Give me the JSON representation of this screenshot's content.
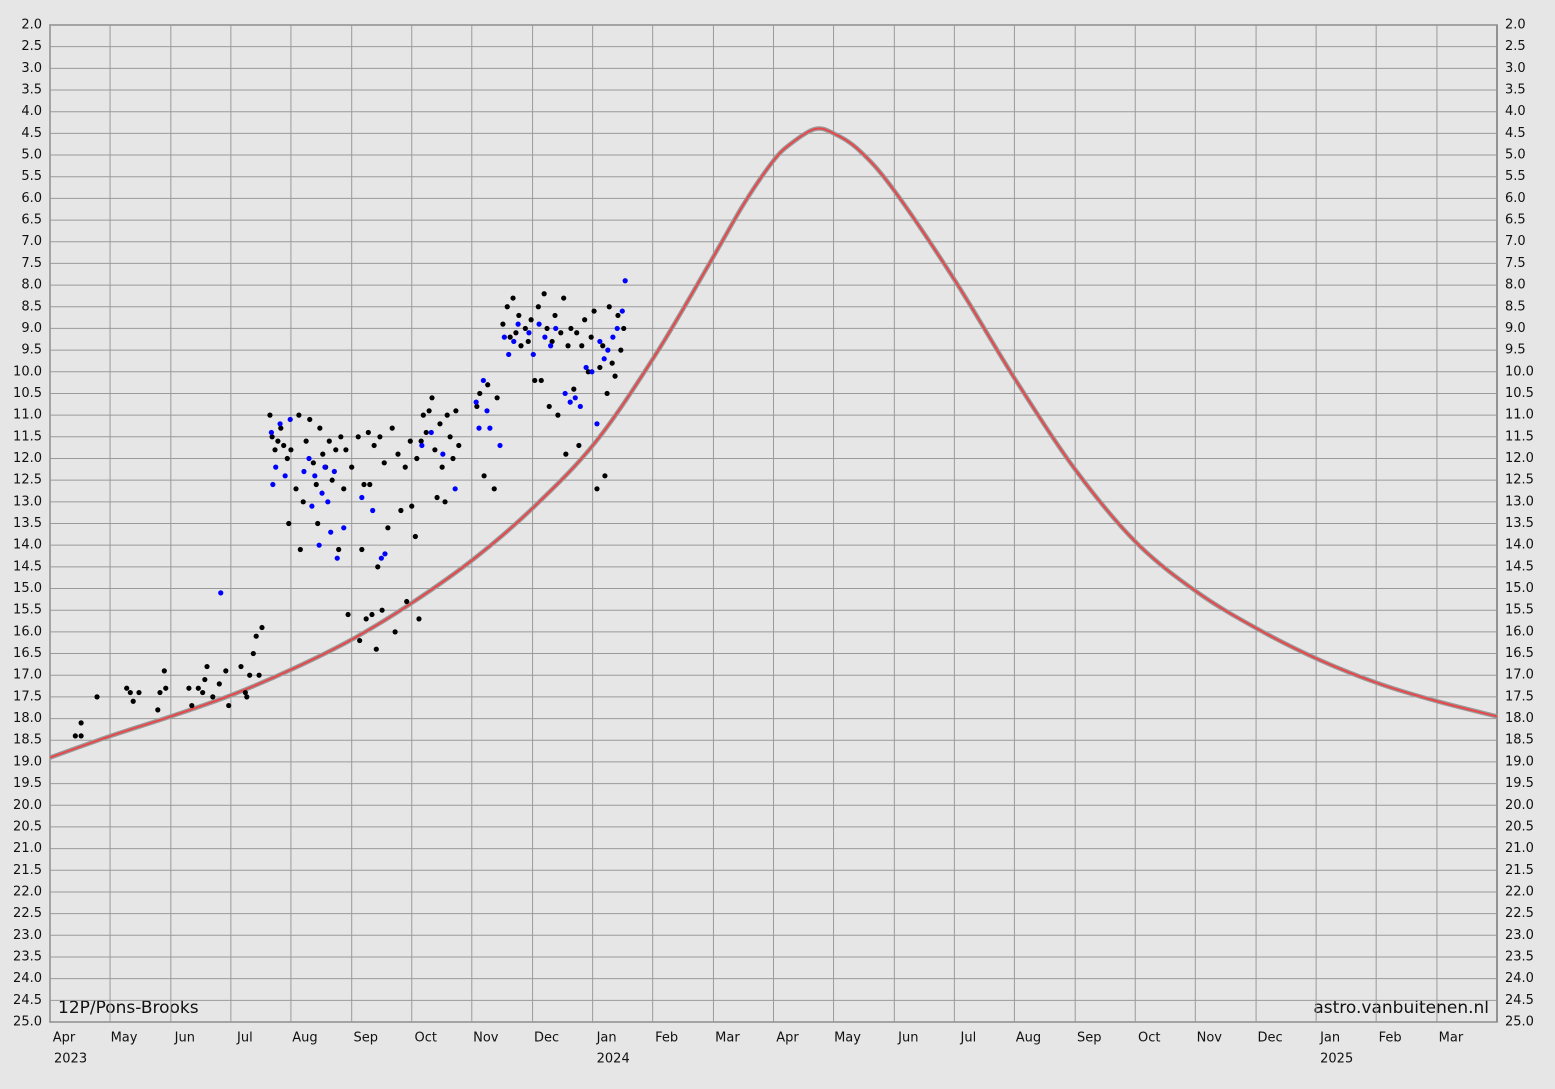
{
  "chart_data": {
    "type": "scatter",
    "title": "12P/Pons-Brooks",
    "credit": "astro.vanbuitenen.nl",
    "xlim": [
      2023.25,
      2025.25
    ],
    "xticks": [
      {
        "value": 2023.25,
        "label": "Apr"
      },
      {
        "value": 2023.333,
        "label": "May"
      },
      {
        "value": 2023.417,
        "label": "Jun"
      },
      {
        "value": 2023.5,
        "label": "Jul"
      },
      {
        "value": 2023.583,
        "label": "Aug"
      },
      {
        "value": 2023.667,
        "label": "Sep"
      },
      {
        "value": 2023.75,
        "label": "Oct"
      },
      {
        "value": 2023.833,
        "label": "Nov"
      },
      {
        "value": 2023.917,
        "label": "Dec"
      },
      {
        "value": 2024,
        "label": "Jan"
      },
      {
        "value": 2024.083,
        "label": "Feb"
      },
      {
        "value": 2024.167,
        "label": "Mar"
      },
      {
        "value": 2024.25,
        "label": "Apr"
      },
      {
        "value": 2024.333,
        "label": "May"
      },
      {
        "value": 2024.417,
        "label": "Jun"
      },
      {
        "value": 2024.5,
        "label": "Jul"
      },
      {
        "value": 2024.583,
        "label": "Aug"
      },
      {
        "value": 2024.667,
        "label": "Sep"
      },
      {
        "value": 2024.75,
        "label": "Oct"
      },
      {
        "value": 2024.833,
        "label": "Nov"
      },
      {
        "value": 2024.917,
        "label": "Dec"
      },
      {
        "value": 2025,
        "label": "Jan"
      },
      {
        "value": 2025.083,
        "label": "Feb"
      },
      {
        "value": 2025.167,
        "label": "Mar"
      }
    ],
    "x_year_ticks": [
      {
        "value": 2023.25,
        "label": "2023"
      },
      2024,
      2025
    ],
    "ylim": [
      2,
      25
    ],
    "y_reversed": true,
    "grid": true,
    "yticks": [
      {
        "value": 2,
        "label": "2.0"
      },
      2.5,
      {
        "value": 3,
        "label": "3.0"
      },
      3.5,
      {
        "value": 4,
        "label": "4.0"
      },
      4.5,
      {
        "value": 5,
        "label": "5.0"
      },
      5.5,
      {
        "value": 6,
        "label": "6.0"
      },
      6.5,
      {
        "value": 7,
        "label": "7.0"
      },
      7.5,
      {
        "value": 8,
        "label": "8.0"
      },
      8.5,
      {
        "value": 9,
        "label": "9.0"
      },
      9.5,
      {
        "value": 10,
        "label": "10.0"
      },
      10.5,
      {
        "value": 11,
        "label": "11.0"
      },
      11.5,
      {
        "value": 12,
        "label": "12.0"
      },
      12.5,
      {
        "value": 13,
        "label": "13.0"
      },
      13.5,
      {
        "value": 14,
        "label": "14.0"
      },
      14.5,
      {
        "value": 15,
        "label": "15.0"
      },
      15.5,
      {
        "value": 16,
        "label": "16.0"
      },
      16.5,
      {
        "value": 17,
        "label": "17.0"
      },
      17.5,
      {
        "value": 18,
        "label": "18.0"
      },
      18.5,
      {
        "value": 19,
        "label": "19.0"
      },
      19.5,
      {
        "value": 20,
        "label": "20.0"
      },
      20.5,
      {
        "value": 21,
        "label": "21.0"
      },
      21.5,
      {
        "value": 22,
        "label": "22.0"
      },
      22.5,
      {
        "value": 23,
        "label": "23.0"
      },
      23.5,
      {
        "value": 24,
        "label": "24.0"
      },
      24.5,
      {
        "value": 25,
        "label": "25.0"
      }
    ],
    "series": [
      {
        "mode": "lines",
        "color": "#e8474a",
        "x": [
          2023.25,
          2023.334,
          2023.417,
          2023.502,
          2023.586,
          2023.67,
          2023.753,
          2023.837,
          2023.92,
          2024.005,
          2024.089,
          2024.165,
          2024.21,
          2024.249,
          2024.273,
          2024.307,
          2024.333,
          2024.369,
          2024.416,
          2024.501,
          2024.585,
          2024.669,
          2024.752,
          2024.837,
          2024.921,
          2025.005,
          2025.088,
          2025.167,
          2025.25
        ],
        "values": [
          18.9,
          18.4,
          17.95,
          17.45,
          16.85,
          16.15,
          15.3,
          14.3,
          13.1,
          11.6,
          9.55,
          7.4,
          6.1,
          5.15,
          4.75,
          4.4,
          4.5,
          4.9,
          5.8,
          7.9,
          10.2,
          12.3,
          13.95,
          15.1,
          15.95,
          16.65,
          17.2,
          17.6,
          17.95
        ]
      },
      {
        "mode": "markers",
        "color": "#000000",
        "x": [
          2023.285,
          2023.293,
          2023.293,
          2023.315,
          2023.356,
          2023.361,
          2023.365,
          2023.373,
          2023.399,
          2023.402,
          2023.408,
          2023.41,
          2023.442,
          2023.446,
          2023.455,
          2023.461,
          2023.464,
          2023.467,
          2023.475,
          2023.484,
          2023.493,
          2023.497,
          2023.514,
          2023.52,
          2023.522,
          2023.526,
          2023.531,
          2023.535,
          2023.539,
          2023.543,
          2023.554,
          2023.557,
          2023.561,
          2023.565,
          2023.569,
          2023.573,
          2023.578,
          2023.58,
          2023.583,
          2023.59,
          2023.594,
          2023.596,
          2023.6,
          2023.604,
          2023.609,
          2023.614,
          2023.618,
          2023.62,
          2023.623,
          2023.627,
          2023.631,
          2023.636,
          2023.64,
          2023.645,
          2023.649,
          2023.652,
          2023.656,
          2023.659,
          2023.662,
          2023.667,
          2023.676,
          2023.678,
          2023.681,
          2023.684,
          2023.687,
          2023.69,
          2023.692,
          2023.695,
          2023.698,
          2023.701,
          2023.703,
          2023.706,
          2023.709,
          2023.712,
          2023.717,
          2023.723,
          2023.727,
          2023.731,
          2023.735,
          2023.741,
          2023.743,
          2023.748,
          2023.75,
          2023.755,
          2023.757,
          2023.76,
          2023.763,
          2023.766,
          2023.77,
          2023.774,
          2023.778,
          2023.782,
          2023.785,
          2023.789,
          2023.792,
          2023.796,
          2023.799,
          2023.803,
          2023.807,
          2023.811,
          2023.815,
          2023.84,
          2023.844,
          2023.85,
          2023.855,
          2023.864,
          2023.868,
          2023.876,
          2023.882,
          2023.886,
          2023.89,
          2023.894,
          2023.898,
          2023.901,
          2023.907,
          2023.911,
          2023.915,
          2023.92,
          2023.925,
          2023.929,
          2023.933,
          2023.937,
          2023.94,
          2023.944,
          2023.948,
          2023.952,
          2023.956,
          2023.96,
          2023.963,
          2023.966,
          2023.97,
          2023.974,
          2023.978,
          2023.981,
          2023.985,
          2023.989,
          2023.994,
          2023.998,
          2024.002,
          2024.006,
          2024.01,
          2024.014,
          2024.017,
          2024.02,
          2024.023,
          2024.027,
          2024.031,
          2024.035,
          2024.039,
          2024.043
        ],
        "values": [
          18.4,
          18.4,
          18.1,
          17.5,
          17.3,
          17.4,
          17.6,
          17.4,
          17.8,
          17.4,
          16.9,
          17.3,
          17.3,
          17.7,
          17.3,
          17.4,
          17.1,
          16.8,
          17.5,
          17.2,
          16.9,
          17.7,
          16.8,
          17.4,
          17.5,
          17.0,
          16.5,
          16.1,
          17.0,
          15.9,
          11.0,
          11.5,
          11.8,
          11.6,
          11.3,
          11.7,
          12.0,
          13.5,
          11.8,
          12.7,
          11.0,
          14.1,
          13.0,
          11.6,
          11.1,
          12.1,
          12.6,
          13.5,
          11.3,
          11.9,
          12.2,
          11.6,
          12.5,
          11.8,
          14.1,
          11.5,
          12.7,
          11.8,
          15.6,
          12.2,
          11.5,
          16.2,
          14.1,
          12.6,
          15.7,
          11.4,
          12.6,
          15.6,
          11.7,
          16.4,
          14.5,
          11.5,
          15.5,
          12.1,
          13.6,
          11.3,
          16.0,
          11.9,
          13.2,
          12.2,
          15.3,
          11.6,
          13.1,
          13.8,
          12.0,
          15.7,
          11.6,
          11.0,
          11.4,
          10.9,
          10.6,
          11.8,
          12.9,
          11.2,
          12.2,
          13.0,
          11.0,
          11.5,
          12.0,
          10.9,
          11.7,
          10.8,
          10.5,
          12.4,
          10.3,
          12.7,
          10.6,
          8.9,
          8.5,
          9.2,
          8.3,
          9.1,
          8.7,
          9.4,
          9.0,
          9.3,
          8.8,
          10.2,
          8.5,
          10.2,
          8.2,
          9.0,
          10.8,
          9.3,
          8.7,
          11.0,
          9.1,
          8.3,
          11.9,
          9.4,
          9.0,
          10.4,
          9.1,
          11.7,
          9.4,
          8.8,
          10.0,
          9.2,
          8.6,
          12.7,
          9.9,
          9.4,
          12.4,
          10.5,
          8.5,
          9.8,
          10.1,
          8.7,
          9.5,
          9.0
        ]
      },
      {
        "mode": "markers",
        "color": "#0000ff",
        "x": [
          2023.486,
          2023.556,
          2023.558,
          2023.562,
          2023.568,
          2023.575,
          2023.582,
          2023.601,
          2023.608,
          2023.612,
          2023.616,
          2023.622,
          2023.626,
          2023.63,
          2023.634,
          2023.638,
          2023.643,
          2023.647,
          2023.656,
          2023.681,
          2023.696,
          2023.708,
          2023.713,
          2023.764,
          2023.777,
          2023.793,
          2023.81,
          2023.839,
          2023.843,
          2023.849,
          2023.854,
          2023.858,
          2023.872,
          2023.878,
          2023.884,
          2023.891,
          2023.897,
          2023.912,
          2023.918,
          2023.926,
          2023.934,
          2023.942,
          2023.949,
          2023.962,
          2023.969,
          2023.976,
          2023.983,
          2023.991,
          2023.999,
          2024.006,
          2024.01,
          2024.016,
          2024.021,
          2024.028,
          2024.034,
          2024.041,
          2024.045
        ],
        "values": [
          15.1,
          11.4,
          12.6,
          12.2,
          11.2,
          12.4,
          11.1,
          12.3,
          12.0,
          13.1,
          12.4,
          14.0,
          12.8,
          12.2,
          13.0,
          13.7,
          12.3,
          14.3,
          13.6,
          12.9,
          13.2,
          14.3,
          14.2,
          11.7,
          11.4,
          11.9,
          12.7,
          10.7,
          11.3,
          10.2,
          10.9,
          11.3,
          11.7,
          9.2,
          9.6,
          9.3,
          8.9,
          9.1,
          9.6,
          8.9,
          9.2,
          9.4,
          9.0,
          10.5,
          10.7,
          10.6,
          10.8,
          9.9,
          10.0,
          11.2,
          9.3,
          9.7,
          9.5,
          9.2,
          9.0,
          8.6,
          7.9
        ]
      }
    ]
  }
}
